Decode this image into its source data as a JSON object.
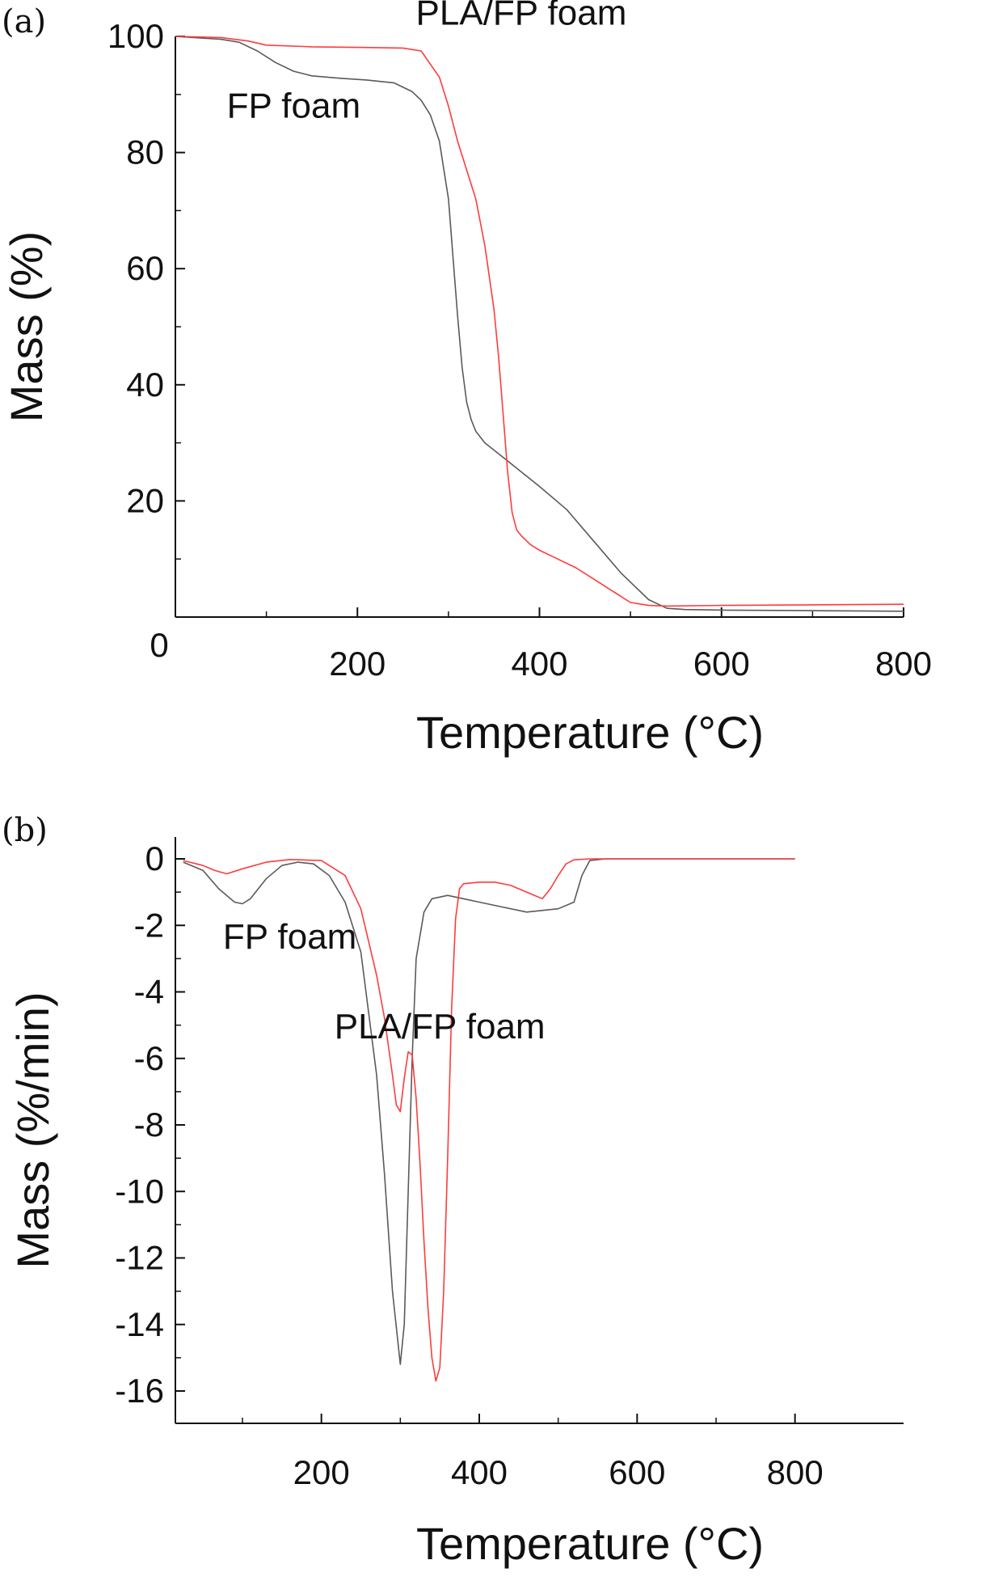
{
  "chart_data": [
    {
      "panel_label": "(a)",
      "type": "line",
      "xlabel": "Temperature (°C)",
      "ylabel": "Mass (%)",
      "xlim": [
        0,
        800
      ],
      "ylim": [
        0,
        100
      ],
      "xticks": [
        "0",
        "200",
        "400",
        "600",
        "800"
      ],
      "yticks": [
        "20",
        "40",
        "60",
        "80",
        "100"
      ],
      "grid": false,
      "series": [
        {
          "name": "FP foam",
          "color": "#5a5a5a",
          "x": [
            0,
            50,
            70,
            90,
            110,
            130,
            150,
            180,
            210,
            240,
            260,
            270,
            280,
            290,
            300,
            305,
            310,
            315,
            320,
            325,
            330,
            340,
            360,
            380,
            400,
            430,
            460,
            490,
            520,
            540,
            560,
            600,
            700,
            800
          ],
          "y": [
            100,
            99.5,
            99,
            97.5,
            95.5,
            94,
            93.2,
            92.8,
            92.5,
            92,
            90.5,
            89,
            86.5,
            82,
            72,
            62,
            52,
            43,
            37,
            34,
            32,
            30,
            27.5,
            25,
            22.5,
            18.5,
            13,
            7.5,
            3,
            1.5,
            1.3,
            1.2,
            1.1,
            1.0
          ]
        },
        {
          "name": "PLA/FP foam",
          "color": "#ff3b3b",
          "x": [
            0,
            50,
            80,
            100,
            150,
            200,
            250,
            270,
            290,
            300,
            310,
            320,
            330,
            340,
            350,
            355,
            360,
            365,
            370,
            375,
            380,
            390,
            400,
            420,
            440,
            460,
            480,
            500,
            520,
            540,
            600,
            700,
            800
          ],
          "y": [
            100,
            99.8,
            99.2,
            98.5,
            98.2,
            98.1,
            98.0,
            97.5,
            93,
            88,
            82,
            77,
            72,
            64,
            53,
            45,
            35,
            25,
            18,
            15,
            14,
            12.5,
            11.5,
            10,
            8.5,
            6.5,
            4.5,
            2.5,
            2.0,
            1.9,
            2.0,
            2.1,
            2.2
          ]
        }
      ],
      "annotations": [
        {
          "text": "PLA/FP foam",
          "x": 380,
          "y": 102
        },
        {
          "text": "FP foam",
          "x": 130,
          "y": 86
        }
      ]
    },
    {
      "panel_label": "(b)",
      "type": "line",
      "xlabel": "Temperature (°C)",
      "ylabel": "Mass (%/min)",
      "xlim": [
        25,
        800
      ],
      "ylim": [
        -17,
        0.5
      ],
      "xticks": [
        "200",
        "400",
        "600",
        "800"
      ],
      "yticks": [
        "0",
        "-2",
        "-4",
        "-6",
        "-8",
        "-10",
        "-12",
        "-14",
        "-16"
      ],
      "grid": false,
      "series": [
        {
          "name": "FP foam",
          "color": "#5a5a5a",
          "x": [
            25,
            50,
            70,
            90,
            100,
            110,
            130,
            150,
            170,
            190,
            210,
            230,
            250,
            270,
            280,
            290,
            300,
            305,
            310,
            315,
            320,
            330,
            340,
            360,
            380,
            400,
            420,
            460,
            500,
            520,
            530,
            540,
            560,
            600,
            700,
            800
          ],
          "y": [
            -0.1,
            -0.35,
            -0.9,
            -1.3,
            -1.35,
            -1.2,
            -0.6,
            -0.2,
            -0.1,
            -0.15,
            -0.5,
            -1.3,
            -2.8,
            -6.5,
            -9.5,
            -13,
            -15.2,
            -14,
            -10,
            -6,
            -3,
            -1.6,
            -1.2,
            -1.1,
            -1.2,
            -1.3,
            -1.4,
            -1.6,
            -1.5,
            -1.3,
            -0.5,
            -0.05,
            0,
            0,
            0,
            0
          ]
        },
        {
          "name": "PLA/FP foam",
          "color": "#ff3b3b",
          "x": [
            25,
            50,
            65,
            80,
            100,
            130,
            160,
            200,
            230,
            250,
            270,
            280,
            290,
            295,
            300,
            305,
            310,
            315,
            320,
            325,
            330,
            335,
            340,
            345,
            350,
            355,
            360,
            365,
            370,
            375,
            380,
            400,
            420,
            440,
            460,
            470,
            480,
            490,
            500,
            510,
            520,
            540,
            600,
            700,
            800
          ],
          "y": [
            -0.05,
            -0.2,
            -0.35,
            -0.45,
            -0.3,
            -0.1,
            -0.02,
            -0.05,
            -0.5,
            -1.5,
            -3.5,
            -4.8,
            -6.5,
            -7.4,
            -7.6,
            -6.6,
            -5.8,
            -5.9,
            -7.2,
            -9.2,
            -11.5,
            -13.5,
            -15,
            -15.7,
            -15.3,
            -13,
            -9,
            -4.5,
            -1.8,
            -0.9,
            -0.75,
            -0.7,
            -0.7,
            -0.8,
            -1.0,
            -1.1,
            -1.2,
            -0.9,
            -0.5,
            -0.15,
            -0.03,
            0,
            0,
            0,
            0
          ]
        }
      ],
      "annotations": [
        {
          "text": "FP foam",
          "x": 160,
          "y": -2.7
        },
        {
          "text": "PLA/FP foam",
          "x": 350,
          "y": -5.4
        }
      ]
    }
  ]
}
